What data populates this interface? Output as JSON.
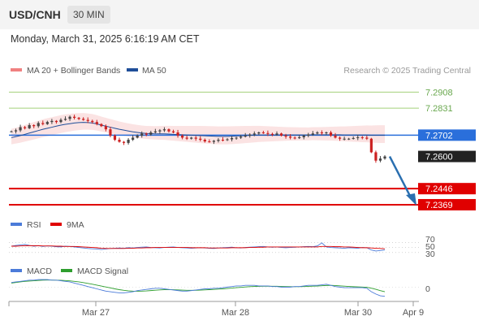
{
  "header": {
    "symbol": "USD/CNH",
    "timeframe": "30 MIN",
    "datetime": "Monday, March 31, 2025 6:16:19 AM CET"
  },
  "legend": {
    "bb_label": "MA 20 + Bollinger Bands",
    "ma50_label": "MA 50",
    "credit": "Research © 2025 Trading Central",
    "bb_color": "#f08080",
    "ma50_color": "#1f4e99"
  },
  "rsi_legend": {
    "rsi_label": "RSI",
    "ma_label": "9MA",
    "rsi_color": "#4b7bd9",
    "ma_color": "#e00000",
    "levels": [
      "70",
      "50",
      "30"
    ]
  },
  "macd_legend": {
    "macd_label": "MACD",
    "signal_label": "MACD Signal",
    "macd_color": "#4b7bd9",
    "signal_color": "#2e9e2e",
    "zero_label": "0"
  },
  "xaxis": {
    "labels": [
      "Mar 27",
      "Mar 28",
      "Mar 30",
      "Apr 9"
    ]
  },
  "chart_data": {
    "type": "line",
    "title": "USD/CNH 30 MIN",
    "ylim": [
      7.233,
      7.296
    ],
    "levels": [
      {
        "label": "7.2908",
        "value": 7.2908,
        "kind": "resistance",
        "color": "#a3d07a"
      },
      {
        "label": "7.2831",
        "value": 7.2831,
        "kind": "resistance",
        "color": "#a3d07a"
      },
      {
        "label": "7.2702",
        "value": 7.2702,
        "kind": "pivot",
        "color": "#2a6fdb"
      },
      {
        "label": "7.2600",
        "value": 7.26,
        "kind": "last",
        "color": "#222222"
      },
      {
        "label": "7.2446",
        "value": 7.2446,
        "kind": "support",
        "color": "#e00000"
      },
      {
        "label": "7.2369",
        "value": 7.2369,
        "kind": "support",
        "color": "#e00000"
      }
    ],
    "close": [
      7.272,
      7.2725,
      7.274,
      7.2735,
      7.275,
      7.2745,
      7.276,
      7.2755,
      7.2765,
      7.277,
      7.2765,
      7.2775,
      7.278,
      7.279,
      7.2785,
      7.278,
      7.2775,
      7.277,
      7.2765,
      7.2755,
      7.2745,
      7.273,
      7.27,
      7.268,
      7.267,
      7.2665,
      7.268,
      7.269,
      7.27,
      7.271,
      7.2705,
      7.2715,
      7.272,
      7.2725,
      7.273,
      7.272,
      7.2715,
      7.27,
      7.269,
      7.2685,
      7.269,
      7.2685,
      7.268,
      7.2672,
      7.267,
      7.2675,
      7.268,
      7.2678,
      7.2682,
      7.2688,
      7.269,
      7.2695,
      7.27,
      7.2705,
      7.271,
      7.2715,
      7.2712,
      7.2708,
      7.2705,
      7.271,
      7.27,
      7.2695,
      7.269,
      7.2688,
      7.2692,
      7.27,
      7.2705,
      7.271,
      7.2715,
      7.2712,
      7.2715,
      7.27,
      7.269,
      7.2685,
      7.2685,
      7.2685,
      7.2688,
      7.2692,
      7.269,
      7.2685,
      7.262,
      7.258,
      7.259,
      7.26
    ],
    "ma50": [
      7.269,
      7.2695,
      7.27,
      7.2706,
      7.2712,
      7.2718,
      7.2724,
      7.273,
      7.2735,
      7.274,
      7.2745,
      7.275,
      7.2754,
      7.2757,
      7.276,
      7.2762,
      7.2763,
      7.2762,
      7.276,
      7.2756,
      7.275,
      7.2745,
      7.274,
      7.2735,
      7.273,
      7.2726,
      7.2722,
      7.2718,
      7.2715,
      7.2712,
      7.271,
      7.2709,
      7.2708,
      7.2708,
      7.2708,
      7.2707,
      7.2706,
      7.2705,
      7.2704,
      7.2703,
      7.2702,
      7.2701,
      7.27,
      7.2699,
      7.2698,
      7.2697,
      7.2696,
      7.2696,
      7.2696,
      7.2697,
      7.2698,
      7.2699,
      7.27,
      7.2701,
      7.2702,
      7.2703,
      7.2703,
      7.2703,
      7.2703,
      7.2703,
      7.2703,
      7.2703,
      7.2703,
      7.2703,
      7.2703,
      7.2703,
      7.2703,
      7.2704,
      7.2704,
      7.2704,
      7.2704,
      7.2704,
      7.2704,
      7.2704,
      7.2703,
      7.2703,
      7.2703,
      7.2703,
      7.2703,
      7.2703,
      7.2702,
      7.2702,
      7.2702,
      7.2702
    ],
    "projection": {
      "from": 7.26,
      "to": 7.2369
    }
  },
  "rsi_data": {
    "values": [
      55,
      58,
      60,
      62,
      58,
      55,
      57,
      54,
      56,
      55,
      53,
      52,
      55,
      54,
      52,
      50,
      48,
      46,
      45,
      44,
      42,
      44,
      46,
      47,
      48,
      47,
      49,
      48,
      50,
      51,
      52,
      50,
      49,
      48,
      50,
      51,
      52,
      50,
      49,
      48,
      47,
      48,
      49,
      48,
      47,
      46,
      48,
      49,
      50,
      51,
      49,
      48,
      50,
      51,
      52,
      53,
      54,
      52,
      51,
      52,
      50,
      49,
      50,
      51,
      52,
      53,
      54,
      53,
      56,
      68,
      52,
      50,
      49,
      48,
      47,
      49,
      48,
      47,
      50,
      49,
      40,
      36,
      38,
      40
    ],
    "ma": [
      55,
      55,
      56,
      57,
      57,
      57,
      57,
      56,
      56,
      56,
      55,
      55,
      54,
      54,
      54,
      53,
      52,
      51,
      50,
      49,
      47,
      46,
      46,
      46,
      46,
      46,
      47,
      47,
      48,
      48,
      49,
      49,
      50,
      50,
      50,
      50,
      50,
      50,
      50,
      50,
      49,
      49,
      49,
      49,
      48,
      48,
      48,
      48,
      48,
      49,
      49,
      49,
      49,
      50,
      50,
      51,
      51,
      52,
      52,
      52,
      52,
      52,
      52,
      52,
      52,
      52,
      52,
      52,
      52,
      54,
      54,
      54,
      53,
      53,
      52,
      52,
      51,
      50,
      49,
      49,
      48,
      47,
      46,
      45
    ]
  },
  "macd_data": {
    "macd": [
      0.8,
      0.9,
      1.0,
      1.1,
      1.2,
      1.2,
      1.3,
      1.3,
      1.3,
      1.2,
      1.2,
      1.1,
      1.0,
      0.9,
      0.7,
      0.5,
      0.3,
      0.1,
      -0.1,
      -0.3,
      -0.5,
      -0.7,
      -0.8,
      -0.9,
      -1.0,
      -1.0,
      -0.9,
      -0.8,
      -0.6,
      -0.5,
      -0.4,
      -0.3,
      -0.2,
      -0.2,
      -0.3,
      -0.4,
      -0.5,
      -0.6,
      -0.7,
      -0.7,
      -0.6,
      -0.5,
      -0.4,
      -0.3,
      -0.3,
      -0.2,
      -0.2,
      -0.1,
      0.0,
      0.1,
      0.2,
      0.2,
      0.3,
      0.3,
      0.3,
      0.2,
      0.2,
      0.2,
      0.1,
      0.1,
      0.0,
      0.0,
      0.0,
      0.1,
      0.1,
      0.2,
      0.3,
      0.3,
      0.3,
      0.4,
      0.5,
      0.3,
      0.1,
      0.0,
      -0.1,
      -0.1,
      -0.1,
      -0.1,
      -0.1,
      -0.2,
      -0.8,
      -1.2,
      -1.5,
      -1.6
    ],
    "signal": [
      0.7,
      0.8,
      0.9,
      1.0,
      1.05,
      1.1,
      1.15,
      1.2,
      1.22,
      1.22,
      1.2,
      1.18,
      1.14,
      1.08,
      1.0,
      0.9,
      0.78,
      0.64,
      0.5,
      0.34,
      0.18,
      0.02,
      -0.14,
      -0.3,
      -0.44,
      -0.56,
      -0.64,
      -0.7,
      -0.72,
      -0.7,
      -0.66,
      -0.6,
      -0.54,
      -0.48,
      -0.45,
      -0.44,
      -0.45,
      -0.48,
      -0.52,
      -0.55,
      -0.56,
      -0.55,
      -0.52,
      -0.48,
      -0.44,
      -0.4,
      -0.35,
      -0.3,
      -0.24,
      -0.17,
      -0.1,
      -0.04,
      0.02,
      0.08,
      0.12,
      0.14,
      0.15,
      0.16,
      0.15,
      0.14,
      0.12,
      0.1,
      0.08,
      0.08,
      0.08,
      0.1,
      0.13,
      0.16,
      0.19,
      0.23,
      0.28,
      0.3,
      0.27,
      0.22,
      0.16,
      0.11,
      0.07,
      0.04,
      0.01,
      -0.03,
      -0.18,
      -0.38,
      -0.6,
      -0.8
    ],
    "range": [
      -2.2,
      1.6
    ]
  }
}
